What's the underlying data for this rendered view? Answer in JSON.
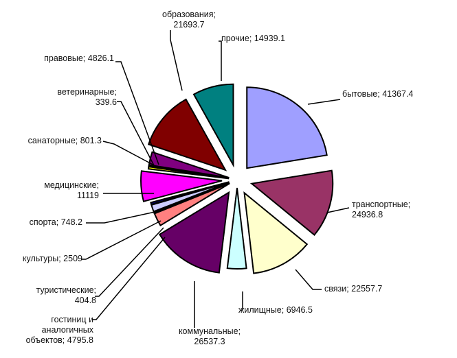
{
  "chart_data": {
    "type": "pie",
    "exploded": true,
    "slices": [
      {
        "label": "бытовые",
        "value": 41367.4,
        "display": "бытовые; 41367.4",
        "color": "#9f9fff"
      },
      {
        "label": "транспортные",
        "value": 24936.8,
        "display": "транспортные; 24936.8",
        "color": "#993366"
      },
      {
        "label": "связи",
        "value": 22557.7,
        "display": "связи; 22557.7",
        "color": "#ffffcc"
      },
      {
        "label": "жилищные",
        "value": 6946.5,
        "display": "жилищные; 6946.5",
        "color": "#ccffff"
      },
      {
        "label": "коммунальные",
        "value": 26537.3,
        "display": "коммунальные; 26537.3",
        "color": "#660066"
      },
      {
        "label": "гостиниц и аналогичных объектов",
        "value": 4795.8,
        "display": "гостиниц и аналогичных объектов; 4795.8",
        "color": "#ff8080"
      },
      {
        "label": "туристические",
        "value": 404.8,
        "display": "туристические; 404.8",
        "color": "#0066cc"
      },
      {
        "label": "культуры",
        "value": 2509,
        "display": "культуры; 2509",
        "color": "#ccccff"
      },
      {
        "label": "спорта",
        "value": 748.2,
        "display": "спорта; 748.2",
        "color": "#000080"
      },
      {
        "label": "медицинские",
        "value": 11119,
        "display": "медицинские; 11119",
        "color": "#ff00ff"
      },
      {
        "label": "санаторные",
        "value": 801.3,
        "display": "санаторные; 801.3",
        "color": "#ffff00"
      },
      {
        "label": "ветеринарные",
        "value": 339.6,
        "display": "ветеринарные; 339.6",
        "color": "#00ffff"
      },
      {
        "label": "правовые",
        "value": 4826.1,
        "display": "правовые; 4826.1",
        "color": "#800080"
      },
      {
        "label": "образования",
        "value": 21693.7,
        "display": "образования; 21693.7",
        "color": "#800000"
      },
      {
        "label": "прочие",
        "value": 14939.1,
        "display": "прочие; 14939.1",
        "color": "#008080"
      }
    ]
  }
}
